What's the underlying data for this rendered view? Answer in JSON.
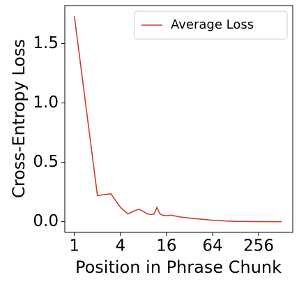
{
  "chart_data": {
    "type": "line",
    "xlabel": "Position in Phrase Chunk",
    "ylabel": "Cross-Entropy Loss",
    "xscale": "log2",
    "xlim": [
      0.75,
      714
    ],
    "ylim": [
      -0.09,
      1.82
    ],
    "xticks": [
      1,
      4,
      16,
      64,
      256
    ],
    "yticks": [
      {
        "value": 0,
        "label": "0.0"
      },
      {
        "value": 0.5,
        "label": "0.5"
      },
      {
        "value": 1,
        "label": "1.0"
      },
      {
        "value": 1.5,
        "label": "1.5"
      }
    ],
    "legend": "upper right",
    "x": [
      1,
      2,
      3,
      4,
      5,
      6,
      7,
      8,
      9,
      10,
      11,
      12,
      13,
      14,
      16,
      18,
      20,
      24,
      32,
      48,
      64,
      96,
      128,
      256,
      512
    ],
    "series": [
      {
        "name": "Average Loss",
        "color": "#d13b2b",
        "values": [
          1.73,
          0.22,
          0.235,
          0.12,
          0.065,
          0.09,
          0.105,
          0.085,
          0.065,
          0.06,
          0.065,
          0.12,
          0.07,
          0.055,
          0.05,
          0.055,
          0.05,
          0.04,
          0.03,
          0.02,
          0.012,
          0.006,
          0.003,
          0.001,
          0
        ]
      }
    ]
  }
}
